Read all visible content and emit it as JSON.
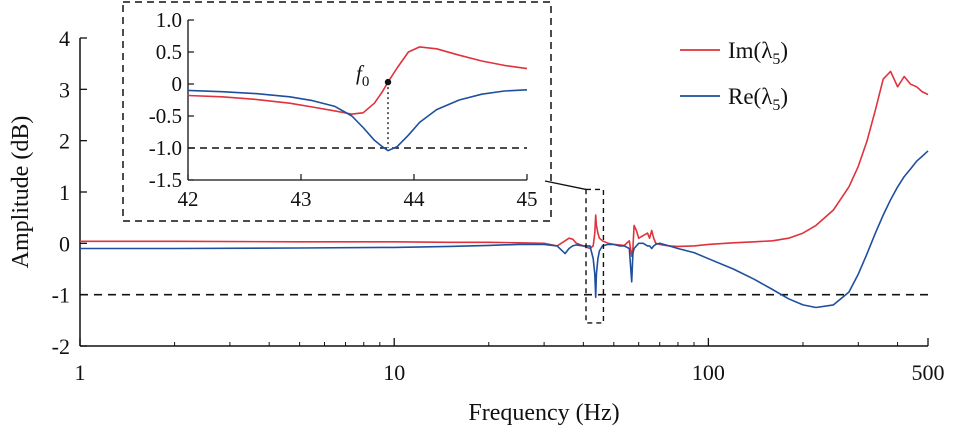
{
  "chart_data": [
    {
      "type": "line",
      "role": "main",
      "xlabel": "Frequency (Hz)",
      "ylabel": "Amplitude (dB)",
      "xscale": "log",
      "xlim": [
        1,
        500
      ],
      "ylim": [
        -2,
        4
      ],
      "xticks": [
        1,
        10,
        100,
        500
      ],
      "xtick_labels": [
        "1",
        "10",
        "100",
        "500"
      ],
      "yticks": [
        -2,
        -1,
        0,
        1,
        2,
        3,
        4
      ],
      "ytick_labels": [
        "-2",
        "-1",
        "0",
        "1",
        "2",
        "3",
        "4"
      ],
      "reference_line": -1,
      "legend_position": "top-right",
      "series": [
        {
          "name": "Im(λ5)",
          "color": "#e0323c",
          "x": [
            1,
            2,
            5,
            10,
            15,
            20,
            25,
            30,
            33,
            35,
            36,
            37,
            38,
            40,
            42,
            43,
            43.5,
            43.8,
            44,
            44.5,
            45,
            46,
            48,
            50,
            52,
            54,
            56,
            57,
            57.5,
            58,
            59,
            60,
            62,
            64,
            65,
            66,
            67,
            68,
            70,
            75,
            80,
            90,
            100,
            120,
            140,
            160,
            180,
            200,
            220,
            250,
            280,
            300,
            320,
            340,
            360,
            380,
            400,
            420,
            440,
            460,
            480,
            500
          ],
          "y": [
            0.04,
            0.04,
            0.03,
            0.03,
            0.02,
            0.02,
            0.01,
            0.0,
            -0.05,
            0.05,
            0.1,
            0.08,
            0.0,
            -0.05,
            -0.1,
            -0.05,
            0.2,
            0.55,
            0.35,
            0.2,
            0.1,
            0.05,
            0.0,
            -0.02,
            -0.03,
            -0.04,
            0.05,
            -0.25,
            -0.1,
            0.35,
            0.25,
            0.1,
            0.15,
            0.2,
            0.1,
            0.25,
            0.1,
            0.0,
            -0.02,
            -0.05,
            -0.06,
            -0.05,
            -0.02,
            0.01,
            0.03,
            0.05,
            0.1,
            0.2,
            0.35,
            0.65,
            1.1,
            1.5,
            2.0,
            2.6,
            3.2,
            3.35,
            3.05,
            3.25,
            3.1,
            3.05,
            2.95,
            2.9
          ]
        },
        {
          "name": "Re(λ5)",
          "color": "#1f4f9e",
          "x": [
            1,
            2,
            5,
            10,
            15,
            20,
            25,
            30,
            33,
            35,
            36,
            37,
            38,
            40,
            42,
            43,
            43.5,
            43.8,
            44,
            44.5,
            45,
            46,
            48,
            50,
            52,
            54,
            56,
            57,
            57.5,
            58,
            59,
            60,
            62,
            64,
            65,
            66,
            67,
            68,
            70,
            75,
            80,
            90,
            100,
            120,
            140,
            160,
            180,
            200,
            220,
            250,
            280,
            300,
            320,
            340,
            360,
            380,
            400,
            420,
            440,
            460,
            480,
            500
          ],
          "y": [
            -0.1,
            -0.1,
            -0.09,
            -0.08,
            -0.06,
            -0.04,
            -0.02,
            -0.02,
            -0.05,
            -0.2,
            -0.1,
            -0.05,
            -0.03,
            -0.05,
            -0.05,
            -0.3,
            -0.6,
            -1.05,
            -0.6,
            -0.3,
            -0.15,
            -0.05,
            -0.02,
            -0.02,
            -0.05,
            -0.05,
            -0.1,
            -0.75,
            -0.2,
            -0.1,
            -0.05,
            0.0,
            0.0,
            -0.05,
            -0.05,
            -0.1,
            -0.05,
            -0.02,
            0.0,
            -0.05,
            -0.1,
            -0.18,
            -0.3,
            -0.5,
            -0.7,
            -0.9,
            -1.08,
            -1.2,
            -1.25,
            -1.2,
            -0.95,
            -0.6,
            -0.2,
            0.2,
            0.55,
            0.85,
            1.1,
            1.3,
            1.45,
            1.6,
            1.7,
            1.8
          ]
        }
      ]
    },
    {
      "type": "line",
      "role": "inset",
      "xlim": [
        42,
        45
      ],
      "ylim": [
        -1.5,
        1.0
      ],
      "xticks": [
        42,
        43,
        44,
        45
      ],
      "xtick_labels": [
        "42",
        "43",
        "44",
        "45"
      ],
      "yticks": [
        -1.5,
        -1.0,
        -0.5,
        0,
        0.5,
        1.0
      ],
      "ytick_labels": [
        "-1.5",
        "-1.0",
        "-0.5",
        "0",
        "0.5",
        "1.0"
      ],
      "reference_line": -1.0,
      "annotation": {
        "label": "f",
        "subscript": "0",
        "x": 43.77,
        "y": 0.03
      },
      "series": [
        {
          "name": "Im(λ5)",
          "color": "#e0323c",
          "x": [
            42,
            42.3,
            42.6,
            42.9,
            43.1,
            43.3,
            43.45,
            43.55,
            43.65,
            43.72,
            43.77,
            43.85,
            43.95,
            44.05,
            44.2,
            44.4,
            44.6,
            44.8,
            45
          ],
          "y": [
            -0.18,
            -0.2,
            -0.24,
            -0.3,
            -0.36,
            -0.42,
            -0.47,
            -0.45,
            -0.3,
            -0.12,
            0.03,
            0.25,
            0.5,
            0.58,
            0.55,
            0.45,
            0.36,
            0.29,
            0.24
          ]
        },
        {
          "name": "Re(λ5)",
          "color": "#1f4f9e",
          "x": [
            42,
            42.3,
            42.6,
            42.9,
            43.1,
            43.3,
            43.45,
            43.55,
            43.65,
            43.72,
            43.77,
            43.85,
            43.95,
            44.05,
            44.2,
            44.4,
            44.6,
            44.8,
            45
          ],
          "y": [
            -0.1,
            -0.12,
            -0.15,
            -0.2,
            -0.26,
            -0.35,
            -0.5,
            -0.68,
            -0.88,
            -0.98,
            -1.04,
            -0.98,
            -0.8,
            -0.6,
            -0.4,
            -0.25,
            -0.16,
            -0.11,
            -0.09
          ]
        }
      ]
    }
  ]
}
